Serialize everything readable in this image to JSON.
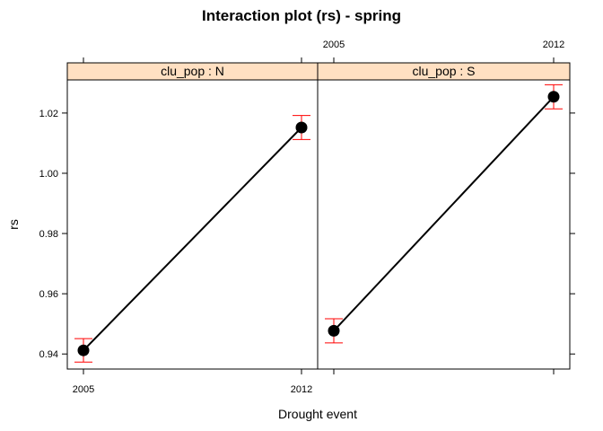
{
  "chart_data": {
    "type": "line",
    "title": "Interaction plot (rs) - spring",
    "xlabel": "Drought event",
    "ylabel": "rs",
    "categories": [
      "2005",
      "2012"
    ],
    "ylim": [
      0.935,
      1.031
    ],
    "yticks": [
      "0.94",
      "0.96",
      "0.98",
      "1.00",
      "1.02"
    ],
    "strip_color": "#ffe0c2",
    "errorbar_color": "#ff0000",
    "panels": [
      {
        "strip": "clu_pop : N",
        "values": [
          0.9412,
          1.0152
        ],
        "lower": [
          0.9373,
          1.0112
        ],
        "upper": [
          0.9451,
          1.0192
        ]
      },
      {
        "strip": "clu_pop : S",
        "values": [
          0.9477,
          1.0254
        ],
        "lower": [
          0.9437,
          1.0214
        ],
        "upper": [
          0.9517,
          1.0294
        ]
      }
    ]
  }
}
